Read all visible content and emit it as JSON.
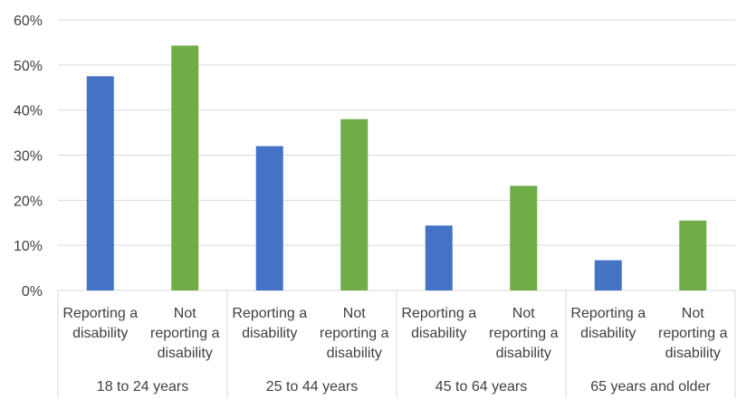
{
  "chart_data": {
    "type": "bar",
    "title": "",
    "xlabel": "",
    "ylabel": "",
    "ylim": [
      0,
      60
    ],
    "y_ticks": [
      "0%",
      "10%",
      "20%",
      "30%",
      "40%",
      "50%",
      "60%"
    ],
    "y_tick_values": [
      0,
      10,
      20,
      30,
      40,
      50,
      60
    ],
    "grid": true,
    "groups": [
      "18 to 24 years",
      "25 to 44 years",
      "45 to 64 years",
      "65 years and older"
    ],
    "categories": [
      [
        "Reporting a",
        "disability"
      ],
      [
        "Not",
        "reporting a",
        "disability"
      ]
    ],
    "values": [
      [
        47.5,
        54.3
      ],
      [
        32.0,
        38.0
      ],
      [
        14.4,
        23.2
      ],
      [
        6.7,
        15.5
      ]
    ],
    "colors": {
      "reporting": "#4472C4",
      "not_reporting": "#70AD47"
    }
  }
}
